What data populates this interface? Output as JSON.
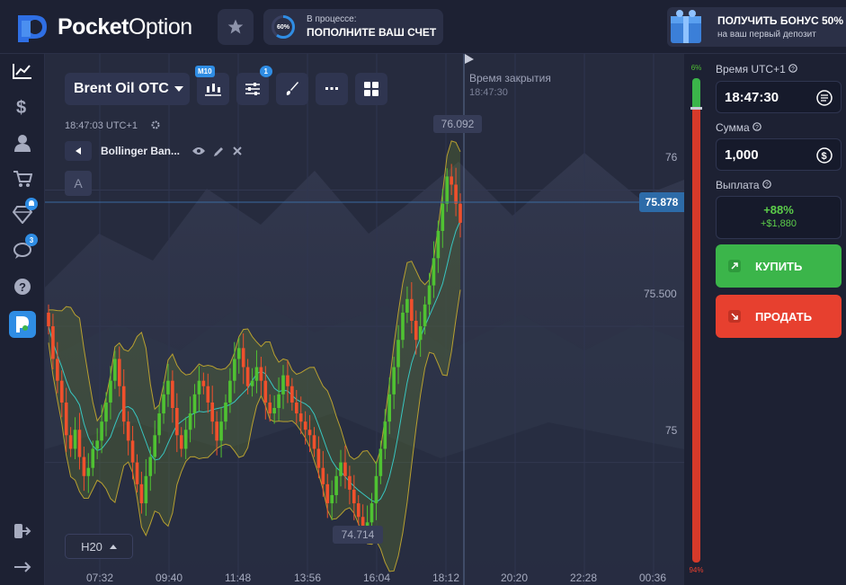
{
  "brand": {
    "name_bold": "Pocket",
    "name_light": "Option"
  },
  "progress": {
    "percent": 60,
    "percent_label": "60%",
    "status": "В процессе:",
    "action": "ПОПОЛНИТЕ ВАШ СЧЕТ"
  },
  "bonus": {
    "title": "ПОЛУЧИТЬ БОНУС 50%",
    "subtitle": "на ваш первый депозит"
  },
  "sidebar": {
    "badges": {
      "achievements": "",
      "chat": "3"
    }
  },
  "chart": {
    "asset": "Brent Oil OTC",
    "timeframe_badge": "M10",
    "indicators_badge": "1",
    "server_time": "18:47:03 UTC+1",
    "indicator_name": "Bollinger Ban...",
    "drawing_tool": "A",
    "expiry_label": "Время закрытия",
    "expiry_time": "18:47:30",
    "timeframe": "H20",
    "high_label": "76.092",
    "low_label": "74.714",
    "current_price": "75.878",
    "price_levels": [
      "76",
      "75.500",
      "75"
    ],
    "time_ticks": [
      "07:32",
      "09:40",
      "11:48",
      "13:56",
      "16:04",
      "18:12",
      "20:20",
      "22:28",
      "00:36"
    ]
  },
  "chart_data": {
    "type": "candlestick",
    "ylim": [
      74.55,
      76.5
    ],
    "indicator": "Bollinger Bands",
    "closes": [
      75.5,
      75.38,
      75.3,
      75.22,
      75.1,
      75.05,
      75.12,
      75.02,
      74.95,
      74.98,
      75.05,
      75.08,
      75.15,
      75.22,
      75.3,
      75.38,
      75.28,
      75.15,
      75.08,
      75.0,
      74.92,
      74.85,
      74.95,
      75.02,
      75.1,
      75.18,
      75.25,
      75.3,
      75.2,
      75.1,
      75.05,
      75.12,
      75.18,
      75.25,
      75.3,
      75.28,
      75.22,
      75.15,
      75.08,
      75.15,
      75.22,
      75.3,
      75.38,
      75.42,
      75.35,
      75.28,
      75.3,
      75.35,
      75.3,
      75.22,
      75.18,
      75.2,
      75.25,
      75.32,
      75.28,
      75.22,
      75.18,
      75.15,
      75.12,
      75.1,
      75.05,
      74.98,
      74.92,
      74.85,
      74.88,
      74.95,
      75.0,
      74.95,
      74.9,
      74.85,
      74.8,
      74.75,
      74.78,
      74.85,
      74.95,
      75.05,
      75.15,
      75.25,
      75.35,
      75.45,
      75.55,
      75.6,
      75.52,
      75.45,
      75.5,
      75.58,
      75.65,
      75.75,
      75.85,
      75.95,
      76.05,
      76.02,
      75.95,
      75.88
    ],
    "sentiment": {
      "up": "6%",
      "down": "94%"
    }
  },
  "panel": {
    "time_label": "Время UTC+1",
    "time_value": "18:47:30",
    "amount_label": "Сумма",
    "amount_value": "1,000",
    "payout_label": "Выплата",
    "payout_pct": "+88%",
    "payout_amount": "+$1,880",
    "buy_label": "КУПИТЬ",
    "sell_label": "ПРОДАТЬ"
  },
  "colors": {
    "up": "#4fc232",
    "down": "#f0502c",
    "buy": "#3bb54a",
    "sell": "#e7402f",
    "accent": "#2f8de4"
  },
  "icons": [
    "chart-line-icon",
    "dollar-icon",
    "user-icon",
    "cart-icon",
    "diamond-icon",
    "chat-icon",
    "help-icon",
    "app-icon",
    "logout-icon",
    "arrow-right-icon",
    "star-icon",
    "eye-icon",
    "pencil-icon",
    "close-icon",
    "settings-icon",
    "clock-icon",
    "coin-icon",
    "flag-icon"
  ]
}
